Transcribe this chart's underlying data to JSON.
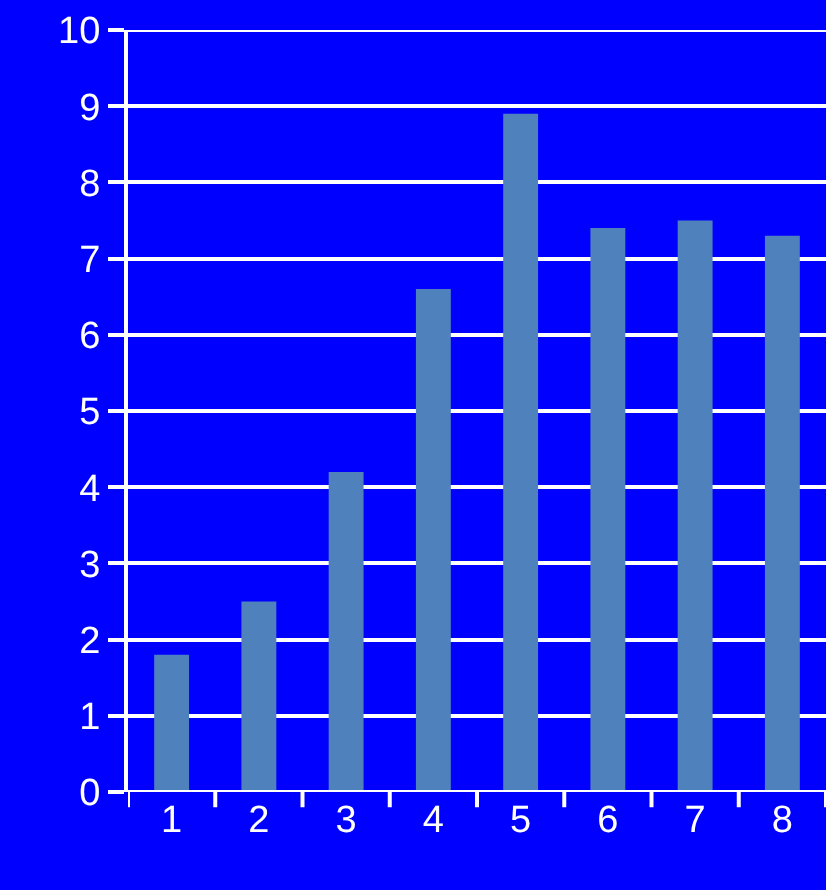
{
  "chart_data": {
    "type": "bar",
    "categories": [
      "1",
      "2",
      "3",
      "4",
      "5",
      "6",
      "7",
      "8"
    ],
    "values": [
      1.8,
      2.5,
      4.2,
      6.6,
      8.9,
      7.4,
      7.5,
      7.3
    ],
    "color": "#4f81bd",
    "ylim": [
      0,
      10
    ],
    "yticks": [
      0,
      1,
      2,
      3,
      4,
      5,
      6,
      7,
      8,
      9,
      10
    ],
    "grid": "y"
  }
}
